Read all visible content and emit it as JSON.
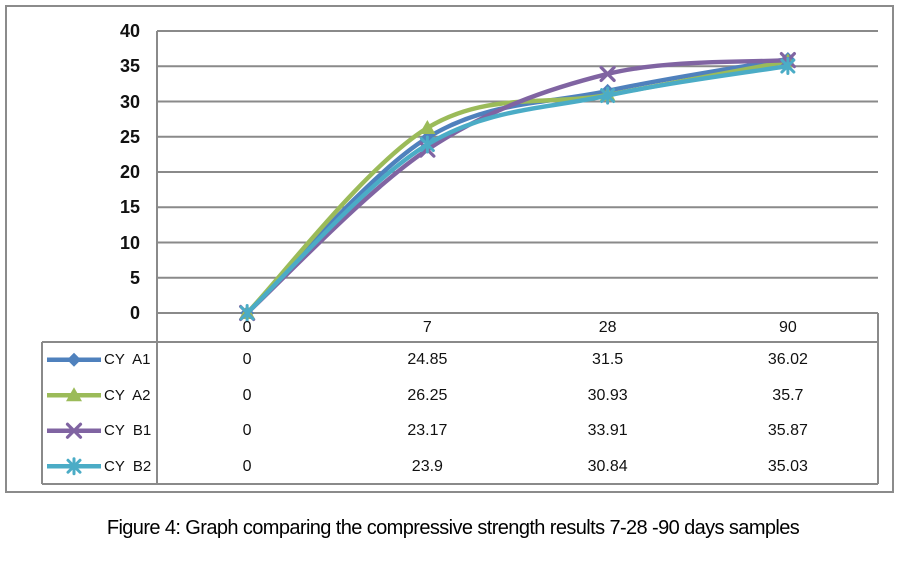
{
  "caption": "Figure 4: Graph comparing the compressive strength results 7-28 -90 days samples",
  "chart_data": {
    "type": "line",
    "title": "",
    "categories": [
      "0",
      "7",
      "28",
      "90"
    ],
    "series": [
      {
        "name": "CY  A1",
        "marker": "diamond",
        "color": "#4F81BD",
        "values": [
          0,
          24.85,
          31.5,
          36.02
        ]
      },
      {
        "name": "CY  A2",
        "marker": "triangle",
        "color": "#9BBB59",
        "values": [
          0,
          26.25,
          30.93,
          35.7
        ]
      },
      {
        "name": "CY  B1",
        "marker": "x",
        "color": "#8064A2",
        "values": [
          0,
          23.17,
          33.91,
          35.87
        ]
      },
      {
        "name": "CY  B2",
        "marker": "asterisk",
        "color": "#4BACC6",
        "values": [
          0,
          23.9,
          30.84,
          35.03
        ]
      }
    ],
    "ylim": [
      0,
      40
    ],
    "ytick_step": 5,
    "y_tick_labels": [
      "0",
      "5",
      "10",
      "15",
      "20",
      "25",
      "30",
      "35",
      "40"
    ],
    "grid": true,
    "smooth_lines": true,
    "legend_position": "data-table-left",
    "data_table_shown": true,
    "colors": {
      "gridline": "#8A8A8A",
      "frame_border": "#8B8B8B",
      "text": "#111111"
    }
  }
}
